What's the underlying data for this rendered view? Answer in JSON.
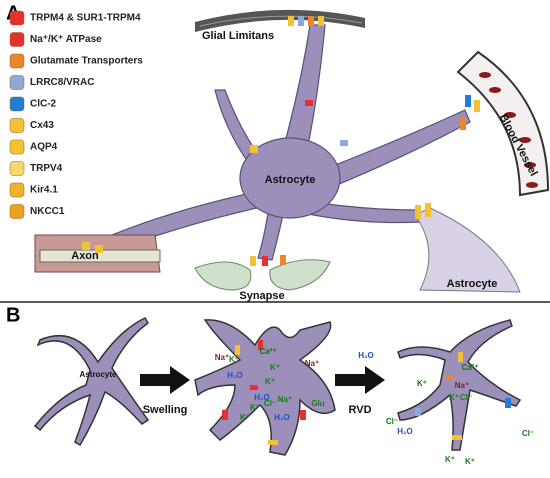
{
  "panel_a": {
    "label": "A",
    "legend": [
      "TRPM4 & SUR1-TRPM4",
      "Na⁺/K⁺ ATPase",
      "Glutamate Transporters",
      "LRRC8/VRAC",
      "ClC-2",
      "Cx43",
      "AQP4",
      "TRPV4",
      "Kir4.1",
      "NKCC1"
    ],
    "labels": {
      "glial_limitans": "Glial Limitans",
      "blood_vessel": "Blood Vessel",
      "astrocyte": "Astrocyte",
      "axon": "Axon",
      "synapse": "Synapse",
      "astrocyte_2": "Astrocyte"
    }
  },
  "panel_b": {
    "label": "B",
    "cell_label": "Astrocyte",
    "arrow_1": "Swelling",
    "arrow_2": "RVD",
    "swollen_ions": [
      "Na⁺",
      "K⁺",
      "H₂O",
      "Ca²⁺",
      "Na⁺",
      "K⁺",
      "K⁺",
      "K⁺",
      "Na⁺",
      "Cl⁻",
      "H₂O",
      "H₂O",
      "K⁺",
      "Glu"
    ],
    "rvd_ions": [
      "H₂O",
      "Ca²⁺",
      "K⁺",
      "Na⁺",
      "K⁺",
      "Cl⁻",
      "Cl⁻",
      "H₂O",
      "Cl⁻",
      "K⁺",
      "K⁺"
    ]
  }
}
